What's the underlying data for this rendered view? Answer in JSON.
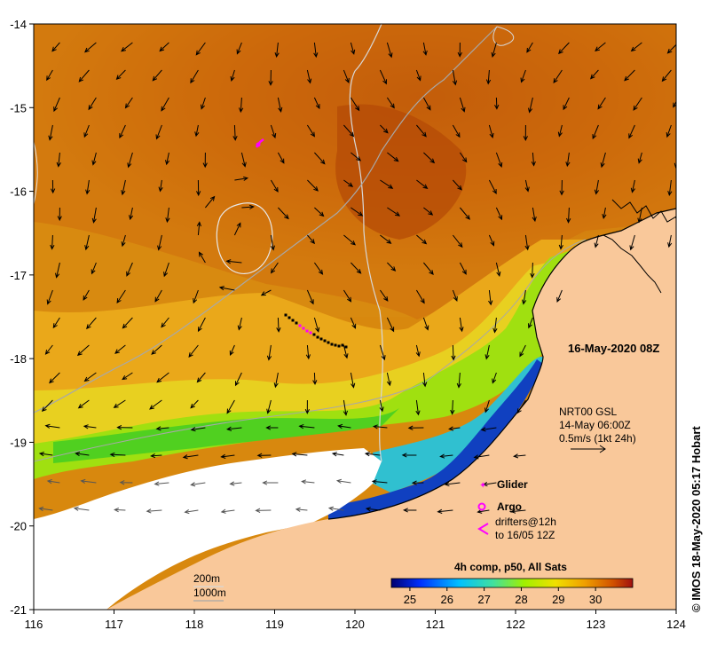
{
  "axes": {
    "x_ticks": [
      "116",
      "117",
      "118",
      "119",
      "120",
      "121",
      "122",
      "123",
      "124"
    ],
    "y_ticks": [
      "-14",
      "-15",
      "-16",
      "-17",
      "-18",
      "-19",
      "-20",
      "-21"
    ]
  },
  "date_label": "16-May-2020 08Z",
  "current_legend": {
    "line1": "NRT00 GSL",
    "line2": "14-May 06:00Z",
    "line3": "0.5m/s (1kt 24h)"
  },
  "symbol_legend": {
    "glider": "Glider",
    "argo": "Argo",
    "drifters_line1": "drifters@12h",
    "drifters_line2": "to 16/05 12Z",
    "glider_color": "#ff00ff",
    "argo_color": "#ff00ff",
    "drifter_color": "#ff00ff"
  },
  "isobath_legend": {
    "shallow": "200m",
    "deep": "1000m"
  },
  "colorbar": {
    "title": "4h comp, p50, All Sats",
    "ticks": [
      "25",
      "26",
      "27",
      "28",
      "29",
      "30"
    ],
    "range": [
      24.5,
      31.0
    ]
  },
  "credit": "© IMOS 18-May-2020 05:17 Hobart",
  "colors": {
    "land": "#f9c89a",
    "no_data": "#ffffff",
    "warm": "#b84d08",
    "cool": "#1030a0"
  }
}
